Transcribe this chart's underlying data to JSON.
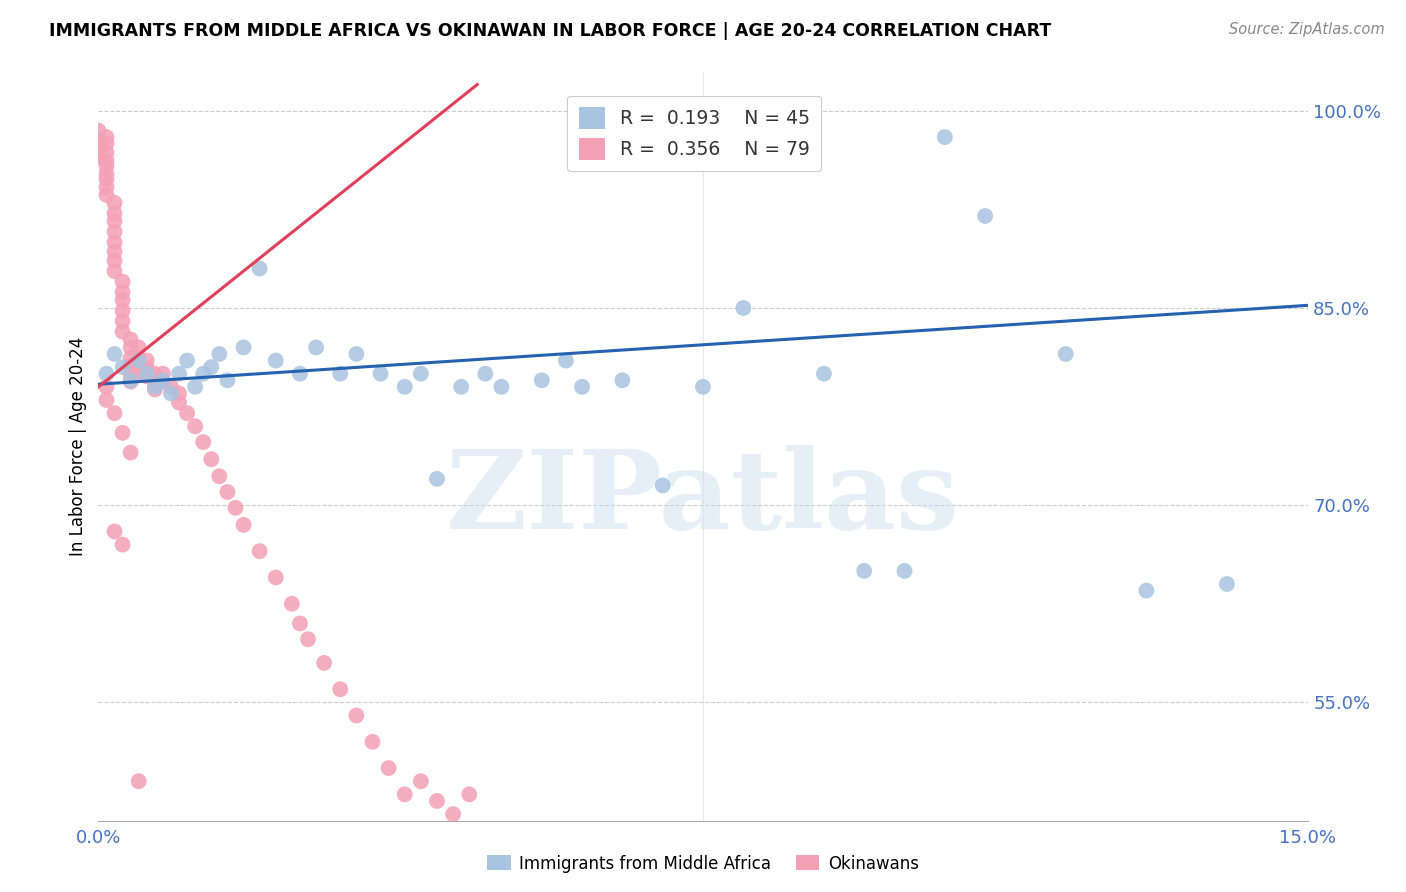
{
  "title": "IMMIGRANTS FROM MIDDLE AFRICA VS OKINAWAN IN LABOR FORCE | AGE 20-24 CORRELATION CHART",
  "source": "Source: ZipAtlas.com",
  "ylabel": "In Labor Force | Age 20-24",
  "xlim": [
    0.0,
    0.15
  ],
  "ylim": [
    0.46,
    1.03
  ],
  "xtick_positions": [
    0.0,
    0.03,
    0.06,
    0.09,
    0.12,
    0.15
  ],
  "xtick_labels": [
    "0.0%",
    "",
    "",
    "",
    "",
    "15.0%"
  ],
  "ytick_positions": [
    0.55,
    0.7,
    0.85,
    1.0
  ],
  "ytick_labels": [
    "55.0%",
    "70.0%",
    "85.0%",
    "100.0%"
  ],
  "blue_color": "#a8c4e0",
  "pink_color": "#f4a0b5",
  "blue_line_color": "#2563b0",
  "pink_line_color": "#e0405a",
  "legend_blue_r": "0.193",
  "legend_blue_n": "45",
  "legend_pink_r": "0.356",
  "legend_pink_n": "79",
  "watermark": "ZIPatlas",
  "blue_scatter_x": [
    0.001,
    0.002,
    0.003,
    0.004,
    0.005,
    0.006,
    0.007,
    0.008,
    0.009,
    0.01,
    0.011,
    0.012,
    0.013,
    0.014,
    0.015,
    0.016,
    0.018,
    0.02,
    0.022,
    0.025,
    0.027,
    0.03,
    0.032,
    0.035,
    0.038,
    0.04,
    0.042,
    0.045,
    0.048,
    0.05,
    0.055,
    0.058,
    0.06,
    0.065,
    0.07,
    0.075,
    0.08,
    0.09,
    0.095,
    0.1,
    0.105,
    0.11,
    0.12,
    0.13,
    0.14
  ],
  "blue_scatter_y": [
    0.8,
    0.815,
    0.805,
    0.795,
    0.81,
    0.8,
    0.79,
    0.795,
    0.785,
    0.8,
    0.81,
    0.79,
    0.8,
    0.805,
    0.815,
    0.795,
    0.82,
    0.88,
    0.81,
    0.8,
    0.82,
    0.8,
    0.815,
    0.8,
    0.79,
    0.8,
    0.72,
    0.79,
    0.8,
    0.79,
    0.795,
    0.81,
    0.79,
    0.795,
    0.715,
    0.79,
    0.85,
    0.8,
    0.65,
    0.65,
    0.98,
    0.92,
    0.815,
    0.635,
    0.64
  ],
  "pink_scatter_x": [
    0.0,
    0.0,
    0.0,
    0.0,
    0.001,
    0.001,
    0.001,
    0.001,
    0.001,
    0.001,
    0.001,
    0.001,
    0.001,
    0.002,
    0.002,
    0.002,
    0.002,
    0.002,
    0.002,
    0.002,
    0.002,
    0.003,
    0.003,
    0.003,
    0.003,
    0.003,
    0.003,
    0.004,
    0.004,
    0.004,
    0.004,
    0.004,
    0.004,
    0.005,
    0.005,
    0.005,
    0.005,
    0.006,
    0.006,
    0.006,
    0.007,
    0.007,
    0.007,
    0.008,
    0.008,
    0.009,
    0.01,
    0.01,
    0.011,
    0.012,
    0.013,
    0.014,
    0.015,
    0.016,
    0.017,
    0.018,
    0.02,
    0.022,
    0.024,
    0.025,
    0.026,
    0.028,
    0.03,
    0.032,
    0.034,
    0.036,
    0.038,
    0.04,
    0.042,
    0.044,
    0.046,
    0.001,
    0.001,
    0.002,
    0.003,
    0.004,
    0.002,
    0.003,
    0.005
  ],
  "pink_scatter_y": [
    0.985,
    0.978,
    0.972,
    0.965,
    0.98,
    0.975,
    0.968,
    0.962,
    0.958,
    0.952,
    0.948,
    0.942,
    0.936,
    0.93,
    0.922,
    0.916,
    0.908,
    0.9,
    0.893,
    0.886,
    0.878,
    0.87,
    0.862,
    0.856,
    0.848,
    0.84,
    0.832,
    0.826,
    0.82,
    0.812,
    0.806,
    0.8,
    0.794,
    0.82,
    0.812,
    0.806,
    0.8,
    0.81,
    0.804,
    0.798,
    0.8,
    0.794,
    0.788,
    0.8,
    0.794,
    0.79,
    0.785,
    0.778,
    0.77,
    0.76,
    0.748,
    0.735,
    0.722,
    0.71,
    0.698,
    0.685,
    0.665,
    0.645,
    0.625,
    0.61,
    0.598,
    0.58,
    0.56,
    0.54,
    0.52,
    0.5,
    0.48,
    0.49,
    0.475,
    0.465,
    0.48,
    0.79,
    0.78,
    0.77,
    0.755,
    0.74,
    0.68,
    0.67,
    0.49
  ],
  "blue_line_x": [
    0.0,
    0.15
  ],
  "blue_line_y": [
    0.792,
    0.852
  ],
  "pink_line_x": [
    0.0,
    0.047
  ],
  "pink_line_y": [
    0.79,
    1.02
  ]
}
